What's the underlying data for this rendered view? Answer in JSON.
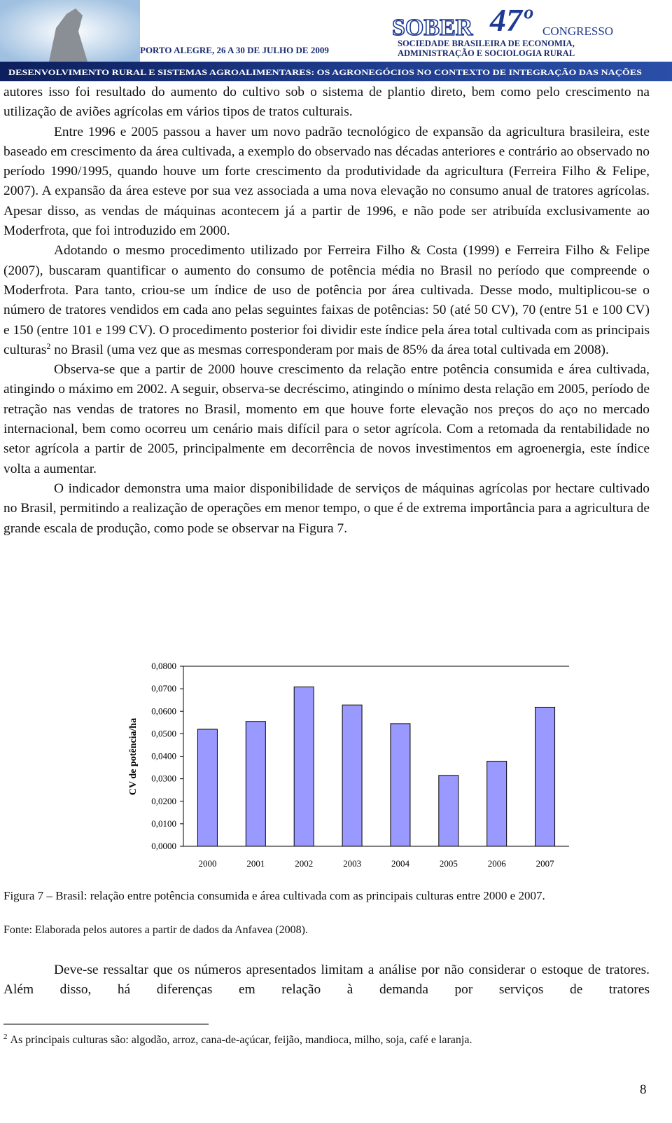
{
  "header": {
    "org": "SOBER",
    "edition": "47º",
    "event": "CONGRESSO",
    "society_line1": "SOCIEDADE BRASILEIRA DE ECONOMIA,",
    "society_line2": "ADMINISTRAÇÃO E SOCIOLOGIA RURAL",
    "place_date": "PORTO ALEGRE, 26 A 30 DE JULHO DE 2009",
    "theme": "DESENVOLVIMENTO RURAL E SISTEMAS AGROALIMENTARES: OS AGRONEGÓCIOS NO CONTEXTO DE INTEGRAÇÃO DAS NAÇÕES"
  },
  "paragraphs": [
    "autores isso foi resultado do aumento do cultivo sob o sistema de plantio direto, bem como pelo crescimento na utilização de aviões agrícolas em vários tipos de tratos culturais.",
    "Entre 1996 e 2005 passou a haver um novo padrão tecnológico de expansão da agricultura brasileira, este baseado em crescimento da área cultivada, a exemplo do observado nas décadas anteriores e contrário ao observado no período 1990/1995, quando houve um forte crescimento da produtividade da agricultura (Ferreira Filho & Felipe, 2007). A expansão da área esteve por sua vez associada a uma nova elevação no consumo anual de tratores agrícolas. Apesar disso, as vendas de máquinas acontecem já a partir de 1996, e não pode ser atribuída exclusivamente ao Moderfrota, que foi introduzido em 2000.",
    [
      "Adotando o mesmo procedimento utilizado por Ferreira Filho & Costa (1999) e Ferreira Filho & Felipe (2007), buscaram quantificar o aumento do consumo de potência média no Brasil no período que compreende o Moderfrota. Para tanto, criou-se um índice de uso de potência por área cultivada. Desse modo, multiplicou-se o número de tratores vendidos em cada ano pelas seguintes faixas de potências: 50 (até 50 CV), 70 (entre 51 e 100 CV) e 150 (entre 101 e 199 CV). O procedimento posterior foi dividir este índice pela área total cultivada com as principais culturas",
      "2",
      " no Brasil (uma vez que as mesmas corresponderam por mais de 85% da área total cultivada em 2008)."
    ],
    "Observa-se que a partir de 2000 houve crescimento da relação entre potência consumida e área cultivada, atingindo o máximo em 2002. A seguir, observa-se decréscimo, atingindo o mínimo desta relação em 2005, período de retração nas vendas de tratores no Brasil, momento em que houve forte elevação nos preços do aço no mercado internacional, bem como ocorreu um cenário mais difícil para o setor agrícola. Com a retomada da rentabilidade no setor agrícola a partir de 2005, principalmente em decorrência de novos investimentos em agroenergia, este índice volta a aumentar.",
    "O indicador demonstra uma maior disponibilidade de serviços de máquinas agrícolas por hectare cultivado no Brasil, permitindo a realização de operações em menor tempo, o que é de extrema importância para a agricultura de grande escala de produção, como pode se observar na Figura 7."
  ],
  "chart_data": {
    "type": "bar",
    "y_label": "CV de potência/ha",
    "categories": [
      "2000",
      "2001",
      "2002",
      "2003",
      "2004",
      "2005",
      "2006",
      "2007"
    ],
    "values": [
      0.052,
      0.0555,
      0.0708,
      0.0628,
      0.0545,
      0.0315,
      0.0378,
      0.0618
    ],
    "color": "#9999ff",
    "grid": false,
    "ylim": [
      0,
      0.08
    ],
    "yticks": [
      {
        "value": 0,
        "label": "0,0000"
      },
      {
        "value": 0.01,
        "label": "0,0100"
      },
      {
        "value": 0.02,
        "label": "0,0200"
      },
      {
        "value": 0.03,
        "label": "0,0300"
      },
      {
        "value": 0.04,
        "label": "0,0400"
      },
      {
        "value": 0.05,
        "label": "0,0500"
      },
      {
        "value": 0.06,
        "label": "0,0600"
      },
      {
        "value": 0.07,
        "label": "0,0700"
      },
      {
        "value": 0.08,
        "label": "0,0800"
      }
    ]
  },
  "caption": "Figura 7 – Brasil: relação entre potência consumida e área cultivada com as principais culturas entre 2000 e 2007.",
  "source": "Fonte: Elaborada pelos autores a partir de dados da Anfavea (2008).",
  "closing_paragraph": "Deve-se ressaltar que os números apresentados limitam a análise por não considerar o estoque de tratores. Além disso, há diferenças em relação à demanda por serviços de tratores",
  "footnote": {
    "marker": "2",
    "text": "As principais culturas são: algodão, arroz, cana-de-açúcar, feijão, mandioca, milho, soja, café e laranja."
  },
  "page_number": "8"
}
